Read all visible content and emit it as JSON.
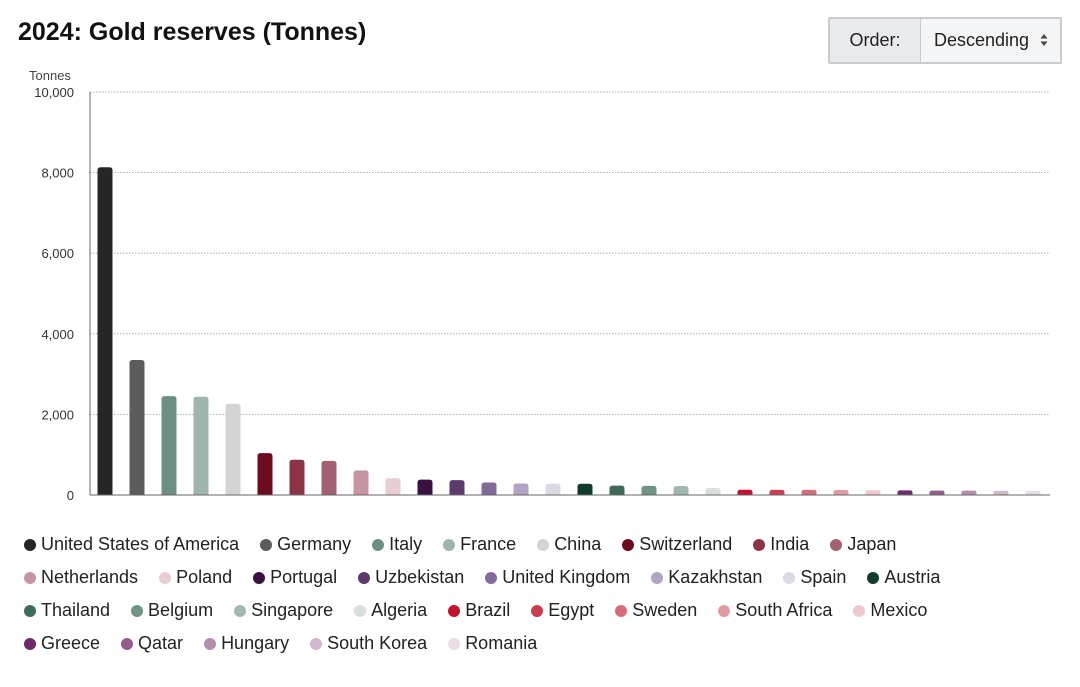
{
  "title": "2024: Gold reserves (Tonnes)",
  "order": {
    "label": "Order:",
    "value": "Descending"
  },
  "chart_data": {
    "type": "bar",
    "title": "2024: Gold reserves (Tonnes)",
    "ylabel": "Tonnes",
    "xlabel": "",
    "ylim": [
      0,
      10000
    ],
    "yticks": [
      "0",
      "2,000",
      "4,000",
      "6,000",
      "8,000",
      "10,000"
    ],
    "ytick_values": [
      0,
      2000,
      4000,
      6000,
      8000,
      10000
    ],
    "grid": true,
    "legend": "bottom",
    "categories": [
      "United States of America",
      "Germany",
      "Italy",
      "France",
      "China",
      "Switzerland",
      "India",
      "Japan",
      "Netherlands",
      "Poland",
      "Portugal",
      "Uzbekistan",
      "United Kingdom",
      "Kazakhstan",
      "Spain",
      "Austria",
      "Thailand",
      "Belgium",
      "Singapore",
      "Algeria",
      "Brazil",
      "Egypt",
      "Sweden",
      "South Africa",
      "Mexico",
      "Greece",
      "Qatar",
      "Hungary",
      "South Korea",
      "Romania"
    ],
    "values": [
      8133,
      3351,
      2452,
      2437,
      2264,
      1040,
      876,
      846,
      612,
      420,
      383,
      370,
      310,
      284,
      282,
      280,
      234,
      227,
      223,
      174,
      130,
      127,
      126,
      125,
      120,
      114,
      110,
      110,
      104,
      103
    ],
    "colors": [
      "#262626",
      "#5c5c5c",
      "#6b8f80",
      "#9db5ac",
      "#d4d4d6",
      "#6e0a1e",
      "#8c3346",
      "#a36172",
      "#c596a2",
      "#e8cdd3",
      "#3b1042",
      "#5c3a6e",
      "#826a9a",
      "#b0a3c4",
      "#dcd8e5",
      "#0f3d2b",
      "#3e6b57",
      "#6e9484",
      "#a2b8af",
      "#d6dfdb",
      "#c1152f",
      "#cc3d4f",
      "#d76d79",
      "#e29ba3",
      "#eec9cd",
      "#6e2a6b",
      "#955d8e",
      "#b58db0",
      "#d2b8cf",
      "#eadde8"
    ]
  }
}
